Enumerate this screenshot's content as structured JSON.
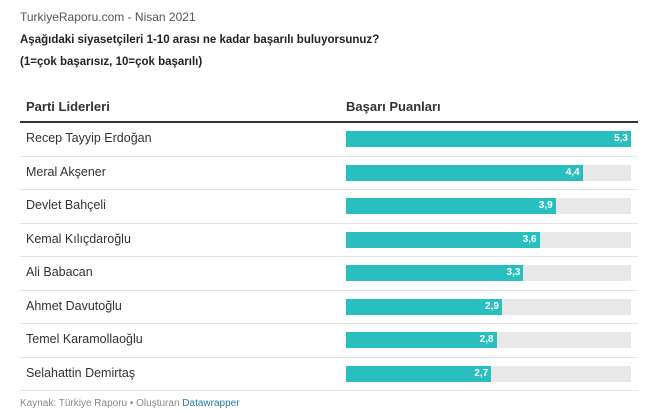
{
  "header": {
    "source_line": "TurkiyeRaporu.com - Nisan 2021",
    "question": "Aşağıdaki siyasetçileri 1-10 arası ne kadar başarılı buluyorsunuz?",
    "scale_note": "(1=çok başarısız, 10=çok başarılı)"
  },
  "table": {
    "col_name": "Parti Liderleri",
    "col_score": "Başarı Puanları"
  },
  "chart_data": {
    "type": "bar",
    "orientation": "horizontal",
    "categories": [
      "Recep Tayyip Erdoğan",
      "Meral Akşener",
      "Devlet Bahçeli",
      "Kemal Kılıçdaroğlu",
      "Ali Babacan",
      "Ahmet Davutoğlu",
      "Temel Karamollaoğlu",
      "Selahattin Demirtaş"
    ],
    "values": [
      5.3,
      4.4,
      3.9,
      3.6,
      3.3,
      2.9,
      2.8,
      2.7
    ],
    "value_labels": [
      "5,3",
      "4,4",
      "3,9",
      "3,6",
      "3,3",
      "2,9",
      "2,8",
      "2,7"
    ],
    "xlim": [
      0,
      5.3
    ],
    "bar_color": "#29bfbf",
    "track_color": "#e8e8e8"
  },
  "footer": {
    "source": "Kaynak: Türkiye Raporu • Oluşturan ",
    "tool": "Datawrapper"
  }
}
